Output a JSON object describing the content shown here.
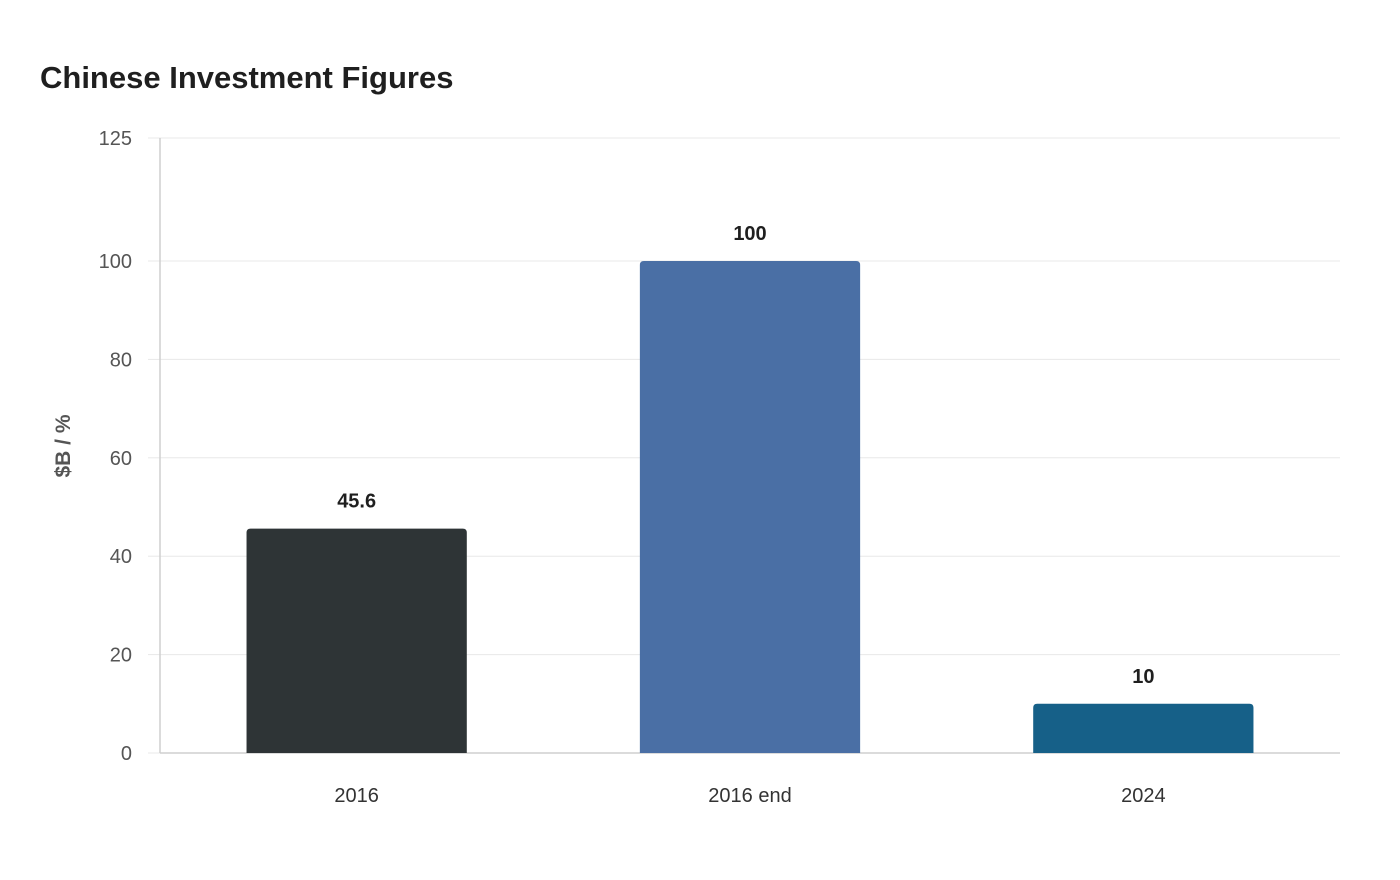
{
  "chart_data": {
    "type": "bar",
    "title": "Chinese Investment Figures",
    "xlabel": "",
    "ylabel": "$B / %",
    "categories": [
      "2016",
      "2016 end",
      "2024"
    ],
    "values": [
      45.6,
      100,
      10
    ],
    "data_labels": [
      "45.6",
      "100",
      "10"
    ],
    "colors": [
      "#2e3436",
      "#4a6fa5",
      "#166088"
    ],
    "ylim": [
      0,
      125
    ],
    "yticks": [
      0,
      20,
      40,
      60,
      80,
      100,
      125
    ],
    "grid": true,
    "legend": "none"
  }
}
